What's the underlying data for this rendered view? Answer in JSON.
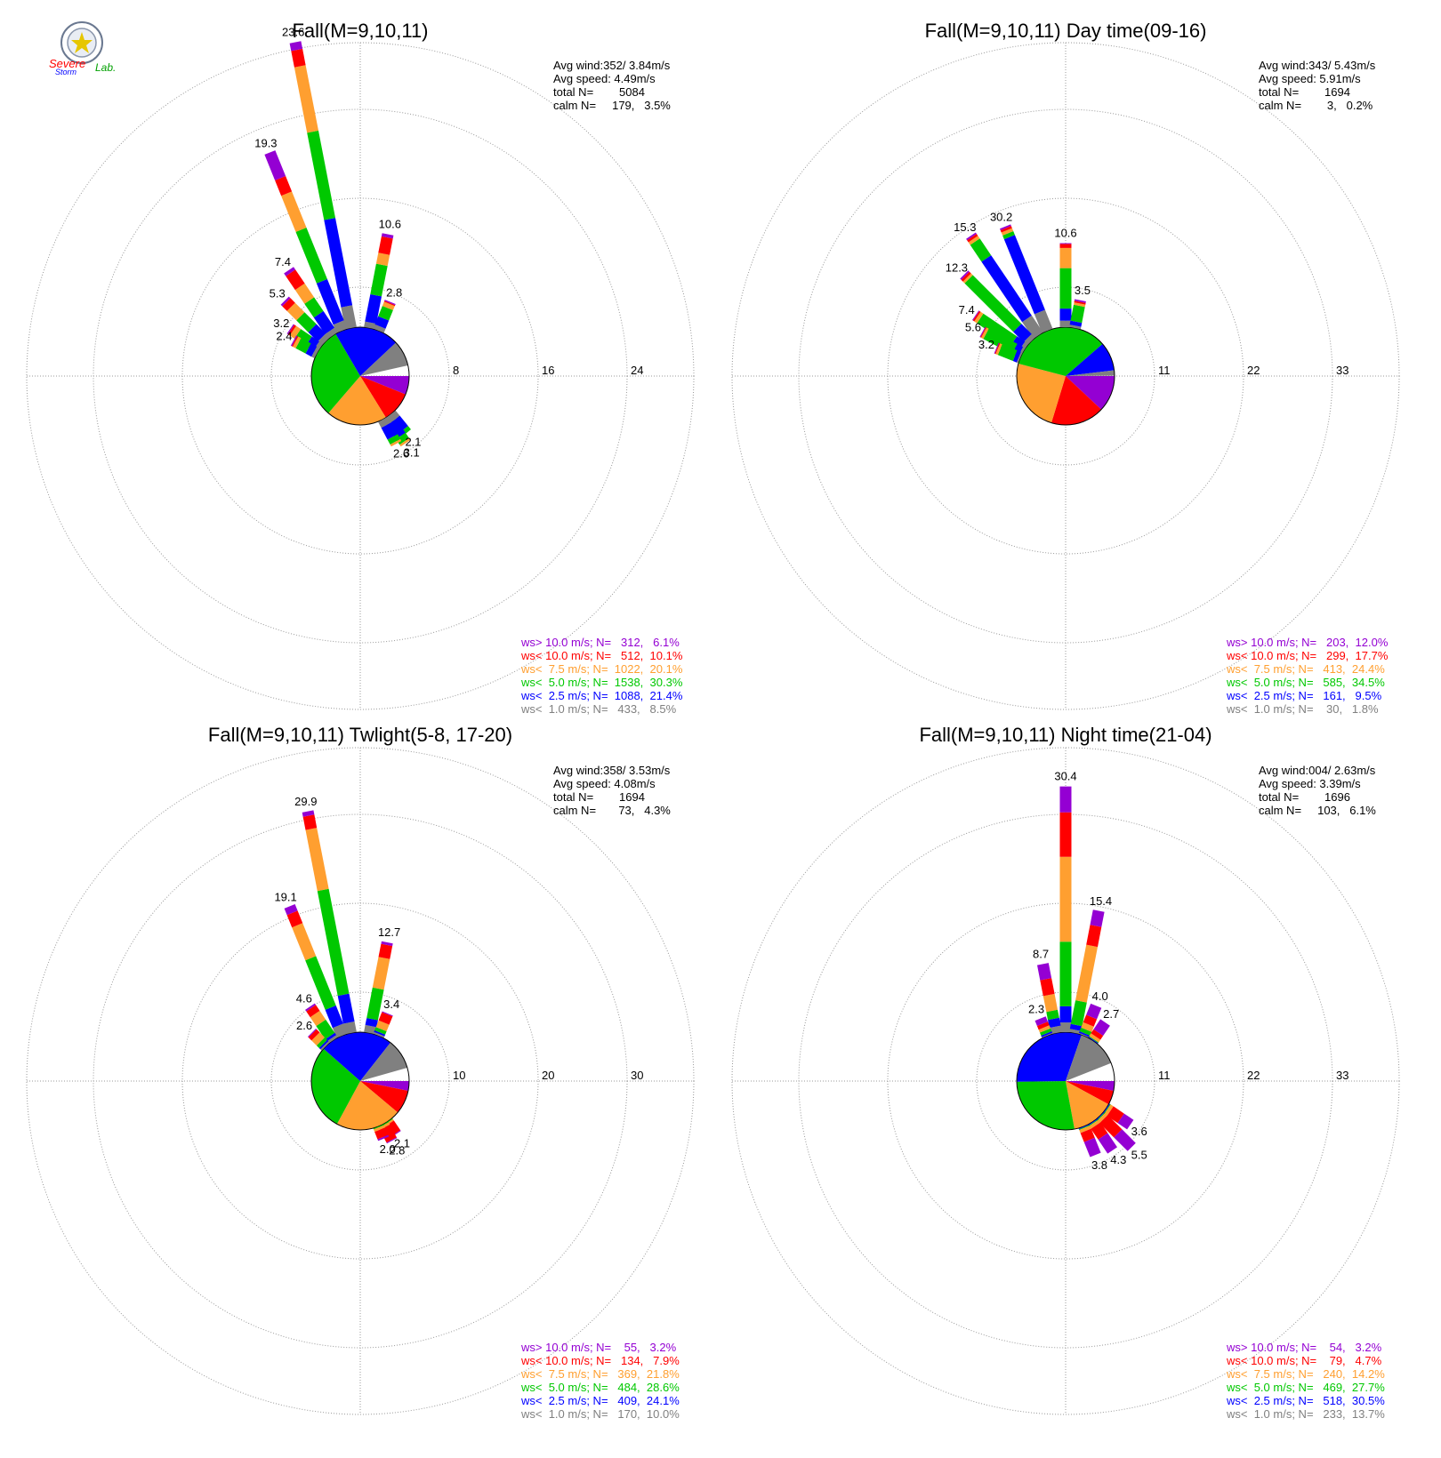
{
  "logo": {
    "line1": "Severe",
    "line2": "Storm",
    "line3": "Lab."
  },
  "colors": {
    "ws_gt_10": "#9400d3",
    "ws_lt_10": "#ff0000",
    "ws_lt_7_5": "#ff9f30",
    "ws_lt_5": "#00c800",
    "ws_lt_2_5": "#0000ff",
    "ws_lt_1": "#808080",
    "grid": "#999999"
  },
  "chart_data": [
    {
      "type": "wind-rose",
      "title": "Fall(M=9,10,11)",
      "stats": [
        "Avg wind:352/ 3.84m/s",
        "Avg speed: 4.49m/s",
        "total N=        5084",
        "calm N=     179,   3.5%"
      ],
      "ring_labels": [
        "8",
        "16",
        "24"
      ],
      "rmax": 30,
      "bar_labels": [
        {
          "dir": 349,
          "value": "23.6"
        },
        {
          "dir": 338,
          "value": "19.3"
        },
        {
          "dir": 11,
          "value": "10.6"
        },
        {
          "dir": 326,
          "value": "7.4"
        },
        {
          "dir": 315,
          "value": "5.3"
        },
        {
          "dir": 304,
          "value": "3.2"
        },
        {
          "dir": 298,
          "value": "2.4"
        },
        {
          "dir": 22,
          "value": "2.8"
        },
        {
          "dir": 141,
          "value": "2.1"
        },
        {
          "dir": 146,
          "value": "3.1"
        },
        {
          "dir": 152,
          "value": "2.6"
        }
      ],
      "bars": [
        {
          "dir": 349,
          "segs": [
            2,
            8,
            8,
            6,
            1.5,
            0.7
          ]
        },
        {
          "dir": 338,
          "segs": [
            0.8,
            4,
            5,
            3.5,
            1.5,
            2.5
          ]
        },
        {
          "dir": 11,
          "segs": [
            0.5,
            2.5,
            2.8,
            1,
            1.5,
            0.3
          ]
        },
        {
          "dir": 326,
          "segs": [
            0.5,
            1.8,
            1.5,
            1.5,
            1.5,
            0.3
          ]
        },
        {
          "dir": 315,
          "segs": [
            0.5,
            1.2,
            1.5,
            1.2,
            0.6,
            0.2
          ]
        },
        {
          "dir": 304,
          "segs": [
            0.4,
            0.8,
            1.2,
            0.5,
            0.2,
            0.1
          ]
        },
        {
          "dir": 298,
          "segs": [
            0.3,
            0.6,
            1,
            0.3,
            0.1,
            0.1
          ]
        },
        {
          "dir": 22,
          "segs": [
            0.4,
            0.8,
            1,
            0.4,
            0.1,
            0.1
          ]
        },
        {
          "dir": 141,
          "segs": [
            0.6,
            1.2,
            0.4,
            0,
            0,
            0
          ]
        },
        {
          "dir": 146,
          "segs": [
            0.6,
            1.5,
            0.6,
            0.2,
            0,
            0
          ]
        },
        {
          "dir": 152,
          "segs": [
            0.6,
            1.2,
            0.5,
            0.2,
            0,
            0
          ]
        }
      ],
      "pie": [
        6.1,
        10.1,
        20.1,
        30.3,
        21.4,
        8.5
      ],
      "legend": [
        {
          "label": "ws> 10.0 m/s; N=",
          "n": "312",
          "pct": "6.1%"
        },
        {
          "label": "ws< 10.0 m/s; N=",
          "n": "512",
          "pct": "10.1%"
        },
        {
          "label": "ws<  7.5 m/s; N=",
          "n": "1022",
          "pct": "20.1%"
        },
        {
          "label": "ws<  5.0 m/s; N=",
          "n": "1538",
          "pct": "30.3%"
        },
        {
          "label": "ws<  2.5 m/s; N=",
          "n": "1088",
          "pct": "21.4%"
        },
        {
          "label": "ws<  1.0 m/s; N=",
          "n": "433",
          "pct": "8.5%"
        }
      ]
    },
    {
      "type": "wind-rose",
      "title": "Fall(M=9,10,11) Day time(09-16)",
      "stats": [
        "Avg wind:343/ 5.43m/s",
        "Avg speed: 5.91m/s",
        "total N=        1694",
        "calm N=        3,   0.2%"
      ],
      "ring_labels": [
        "11",
        "22",
        "33"
      ],
      "rmax": 41.25,
      "bar_labels": [
        {
          "dir": 338,
          "value": "30.2"
        },
        {
          "dir": 326,
          "value": "15.3"
        },
        {
          "dir": 315,
          "value": "12.3"
        },
        {
          "dir": 0,
          "value": "10.6"
        },
        {
          "dir": 304,
          "value": "7.4"
        },
        {
          "dir": 298,
          "value": "5.6"
        },
        {
          "dir": 292,
          "value": "3.2"
        },
        {
          "dir": 11,
          "value": "3.5"
        }
      ],
      "bars": [
        {
          "dir": 338,
          "segs": [
            2.5,
            10,
            0.5,
            0.4,
            0.3,
            0.2
          ]
        },
        {
          "dir": 326,
          "segs": [
            2.5,
            9,
            2.5,
            0.4,
            0.3,
            0.2
          ]
        },
        {
          "dir": 315,
          "segs": [
            0.6,
            1.8,
            8.5,
            0.3,
            0.3,
            0.2
          ]
        },
        {
          "dir": 0,
          "segs": [
            0.8,
            1.5,
            5,
            2.5,
            0.5,
            0.1
          ]
        },
        {
          "dir": 304,
          "segs": [
            0.5,
            1.2,
            5,
            0.4,
            0.2,
            0.1
          ]
        },
        {
          "dir": 298,
          "segs": [
            0.3,
            0.8,
            4,
            0.3,
            0.1,
            0.1
          ]
        },
        {
          "dir": 292,
          "segs": [
            0.2,
            0.5,
            2,
            0.3,
            0.1,
            0.1
          ]
        },
        {
          "dir": 11,
          "segs": [
            0.3,
            0.5,
            2.0,
            0.3,
            0.2,
            0.2
          ]
        }
      ],
      "pie": [
        12.0,
        17.7,
        24.4,
        34.5,
        9.5,
        1.8
      ],
      "legend": [
        {
          "label": "ws> 10.0 m/s; N=",
          "n": "203",
          "pct": "12.0%"
        },
        {
          "label": "ws< 10.0 m/s; N=",
          "n": "299",
          "pct": "17.7%"
        },
        {
          "label": "ws<  7.5 m/s; N=",
          "n": "413",
          "pct": "24.4%"
        },
        {
          "label": "ws<  5.0 m/s; N=",
          "n": "585",
          "pct": "34.5%"
        },
        {
          "label": "ws<  2.5 m/s; N=",
          "n": "161",
          "pct": "9.5%"
        },
        {
          "label": "ws<  1.0 m/s; N=",
          "n": "30",
          "pct": "1.8%"
        }
      ]
    },
    {
      "type": "wind-rose",
      "title": "Fall(M=9,10,11) Twlight(5-8, 17-20)",
      "stats": [
        "Avg wind:358/ 3.53m/s",
        "Avg speed: 4.08m/s",
        "total N=        1694",
        "calm N=       73,   4.3%"
      ],
      "ring_labels": [
        "10",
        "20",
        "30"
      ],
      "rmax": 37.5,
      "bar_labels": [
        {
          "dir": 349,
          "value": "29.9"
        },
        {
          "dir": 338,
          "value": "19.1"
        },
        {
          "dir": 11,
          "value": "12.7"
        },
        {
          "dir": 326,
          "value": "4.6"
        },
        {
          "dir": 315,
          "value": "2.6"
        },
        {
          "dir": 22,
          "value": "3.4"
        },
        {
          "dir": 146,
          "value": "2.1"
        },
        {
          "dir": 152,
          "value": "2.8"
        },
        {
          "dir": 158,
          "value": "2.0"
        }
      ],
      "bars": [
        {
          "dir": 349,
          "segs": [
            1.2,
            3.2,
            12,
            7,
            1.5,
            0.5
          ]
        },
        {
          "dir": 338,
          "segs": [
            1.2,
            2.2,
            6,
            4,
            1.5,
            0.8
          ]
        },
        {
          "dir": 11,
          "segs": [
            0.8,
            0.8,
            3.5,
            3.5,
            1.5,
            0.3
          ]
        },
        {
          "dir": 326,
          "segs": [
            0.3,
            0.3,
            1.8,
            1.2,
            0.8,
            0.2
          ]
        },
        {
          "dir": 315,
          "segs": [
            0.2,
            0.2,
            0.4,
            0.8,
            0.5,
            0.1
          ]
        },
        {
          "dir": 22,
          "segs": [
            0.2,
            0.2,
            0.4,
            0.8,
            1.0,
            0.1
          ]
        },
        {
          "dir": 146,
          "segs": [
            0,
            0,
            0.1,
            0.2,
            1.3,
            0.1
          ]
        },
        {
          "dir": 152,
          "segs": [
            0,
            0,
            0.1,
            0.3,
            1.6,
            0.1
          ]
        },
        {
          "dir": 158,
          "segs": [
            0,
            0,
            0.1,
            0.3,
            0.9,
            0.2
          ]
        }
      ],
      "pie": [
        3.2,
        7.9,
        21.8,
        28.6,
        24.1,
        10.0
      ],
      "legend": [
        {
          "label": "ws> 10.0 m/s; N=",
          "n": "55",
          "pct": "3.2%"
        },
        {
          "label": "ws< 10.0 m/s; N=",
          "n": "134",
          "pct": "7.9%"
        },
        {
          "label": "ws<  7.5 m/s; N=",
          "n": "369",
          "pct": "21.8%"
        },
        {
          "label": "ws<  5.0 m/s; N=",
          "n": "484",
          "pct": "28.6%"
        },
        {
          "label": "ws<  2.5 m/s; N=",
          "n": "409",
          "pct": "24.1%"
        },
        {
          "label": "ws<  1.0 m/s; N=",
          "n": "170",
          "pct": "10.0%"
        }
      ]
    },
    {
      "type": "wind-rose",
      "title": "Fall(M=9,10,11) Night time(21-04)",
      "stats": [
        "Avg wind:004/ 2.63m/s",
        "Avg speed: 3.39m/s",
        "total N=        1696",
        "calm N=     103,   6.1%"
      ],
      "ring_labels": [
        "11",
        "22",
        "33"
      ],
      "rmax": 41.25,
      "bar_labels": [
        {
          "dir": 0,
          "value": "30.4"
        },
        {
          "dir": 11,
          "value": "15.4"
        },
        {
          "dir": 349,
          "value": "8.7"
        },
        {
          "dir": 338,
          "value": "2.3"
        },
        {
          "dir": 22,
          "value": "4.0"
        },
        {
          "dir": 34,
          "value": "2.7"
        },
        {
          "dir": 124,
          "value": "3.6"
        },
        {
          "dir": 135,
          "value": "5.5"
        },
        {
          "dir": 146,
          "value": "4.3"
        },
        {
          "dir": 158,
          "value": "3.8"
        }
      ],
      "bars": [
        {
          "dir": 0,
          "segs": [
            1.2,
            2.0,
            8.0,
            10.5,
            5.5,
            3.2
          ]
        },
        {
          "dir": 11,
          "segs": [
            0.4,
            0.6,
            3.0,
            7.0,
            2.5,
            1.9
          ]
        },
        {
          "dir": 349,
          "segs": [
            0.8,
            1.0,
            1.0,
            2.0,
            2.0,
            1.9
          ]
        },
        {
          "dir": 338,
          "segs": [
            0.1,
            0.2,
            0.4,
            0.4,
            0.5,
            0.7
          ]
        },
        {
          "dir": 22,
          "segs": [
            0.1,
            0.2,
            0.5,
            0.7,
            1.0,
            1.5
          ]
        },
        {
          "dir": 34,
          "segs": [
            0,
            0.1,
            0.1,
            0.4,
            0.6,
            1.5
          ]
        },
        {
          "dir": 124,
          "segs": [
            0,
            0.1,
            0.1,
            0.4,
            1.6,
            1.4
          ]
        },
        {
          "dir": 135,
          "segs": [
            0,
            0.1,
            0.1,
            0.4,
            2.5,
            2.4
          ]
        },
        {
          "dir": 146,
          "segs": [
            0,
            0.1,
            0.1,
            0.4,
            1.6,
            2.1
          ]
        },
        {
          "dir": 158,
          "segs": [
            0,
            0.1,
            0.1,
            0.4,
            1.2,
            2.0
          ]
        }
      ],
      "pie": [
        3.2,
        4.7,
        14.2,
        27.7,
        30.5,
        13.7
      ],
      "legend": [
        {
          "label": "ws> 10.0 m/s; N=",
          "n": "54",
          "pct": "3.2%"
        },
        {
          "label": "ws< 10.0 m/s; N=",
          "n": "79",
          "pct": "4.7%"
        },
        {
          "label": "ws<  7.5 m/s; N=",
          "n": "240",
          "pct": "14.2%"
        },
        {
          "label": "ws<  5.0 m/s; N=",
          "n": "469",
          "pct": "27.7%"
        },
        {
          "label": "ws<  2.5 m/s; N=",
          "n": "518",
          "pct": "30.5%"
        },
        {
          "label": "ws<  1.0 m/s; N=",
          "n": "233",
          "pct": "13.7%"
        }
      ]
    }
  ]
}
